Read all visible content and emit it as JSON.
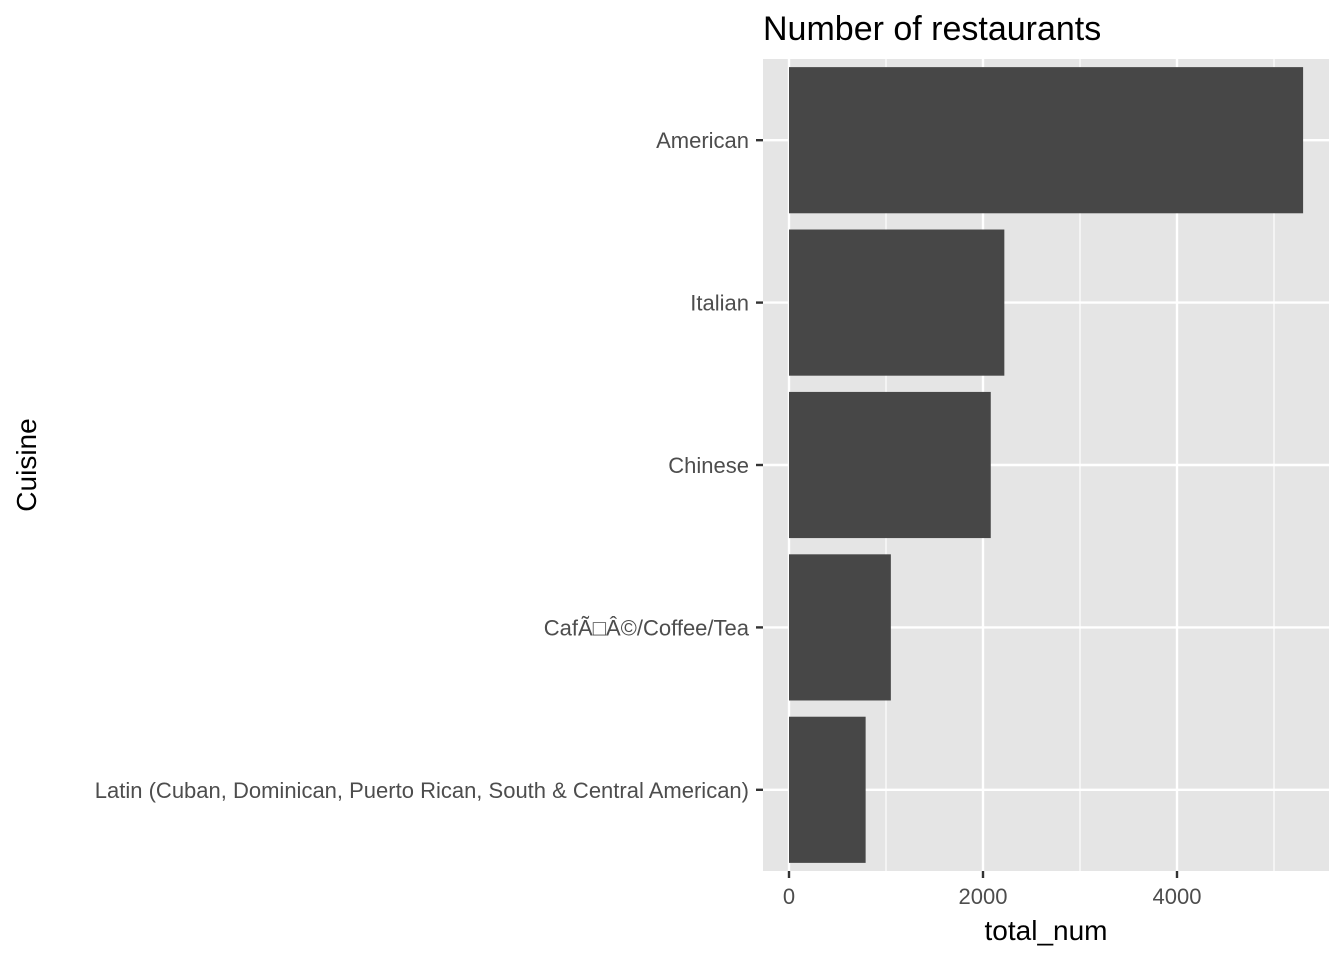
{
  "chart_data": {
    "type": "bar",
    "orientation": "horizontal",
    "title": "Number of restaurants",
    "xlabel": "total_num",
    "ylabel": "Cuisine",
    "categories": [
      "American",
      "Italian",
      "Chinese",
      "CafÃ□Â©/Coffee/Tea",
      "Latin (Cuban, Dominican, Puerto Rican, South & Central American)"
    ],
    "values": [
      5300,
      2220,
      2080,
      1050,
      790
    ],
    "xlim": [
      0,
      5600
    ],
    "x_ticks": [
      0,
      2000,
      4000
    ],
    "x_minor_ticks": [
      1000,
      3000,
      5000
    ],
    "grid": true,
    "colors": {
      "bar": "#474747",
      "panel": "#e5e5e5",
      "grid": "#ffffff",
      "tick": "#333333",
      "tick_label": "#4d4d4d"
    }
  }
}
